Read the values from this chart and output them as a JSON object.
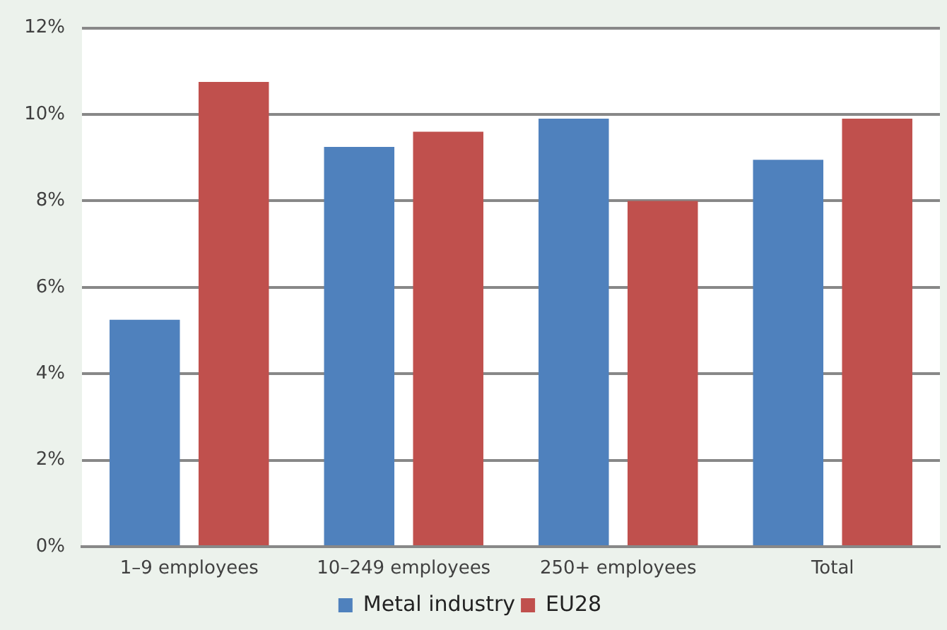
{
  "chart_data": {
    "type": "bar",
    "categories": [
      "1–9 employees",
      "10–249 employees",
      "250+ employees",
      "Total"
    ],
    "series": [
      {
        "name": "Metal industry",
        "color": "#4f81bd",
        "values": [
          5.25,
          9.25,
          9.9,
          8.95
        ]
      },
      {
        "name": "EU28",
        "color": "#c0504d",
        "values": [
          10.75,
          9.6,
          8.0,
          9.9
        ]
      }
    ],
    "ylim": [
      0,
      12
    ],
    "yticks": [
      {
        "value": 0,
        "label": "0%"
      },
      {
        "value": 2,
        "label": "2%"
      },
      {
        "value": 4,
        "label": "4%"
      },
      {
        "value": 6,
        "label": "6%"
      },
      {
        "value": 8,
        "label": "8%"
      },
      {
        "value": 10,
        "label": "10%"
      },
      {
        "value": 12,
        "label": "12%"
      }
    ],
    "grid": "y",
    "legend": "bottom"
  }
}
